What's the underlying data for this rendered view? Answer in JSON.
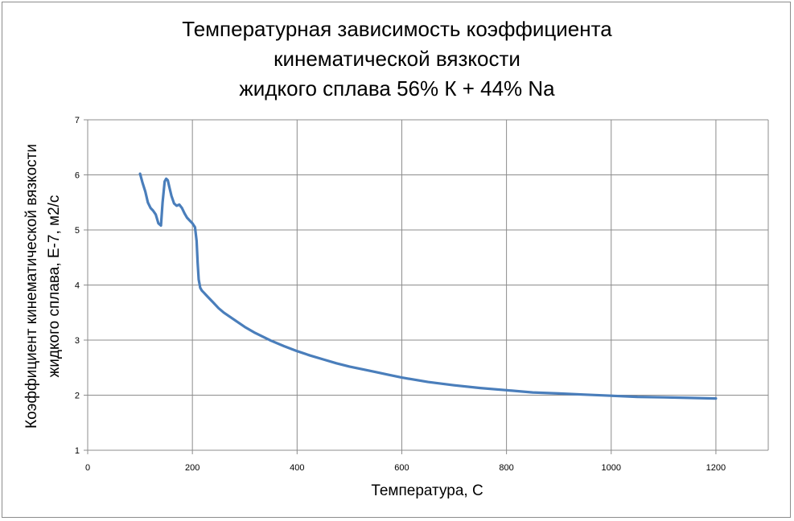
{
  "chart_data": {
    "type": "line",
    "title": [
      "Температурная зависимость коэффициента",
      "кинематической вязкости",
      "жидкого сплава 56% К + 44% Na"
    ],
    "xlabel": "Температура, С",
    "ylabel": [
      "Коэффициент кинематической вязкости",
      "жидкого сплава, Е-7, м2/с"
    ],
    "xlim": [
      0,
      1300
    ],
    "ylim": [
      1,
      7
    ],
    "xticks": [
      "0",
      "200",
      "400",
      "600",
      "800",
      "1000",
      "1200"
    ],
    "yticks": [
      "1",
      "2",
      "3",
      "4",
      "5",
      "6",
      "7"
    ],
    "grid": true,
    "legend": "none",
    "line_color": "#4a7ebb",
    "series": [
      {
        "x": [
          100,
          105,
          110,
          115,
          120,
          125,
          130,
          135,
          140,
          143,
          147,
          150,
          153,
          156,
          160,
          165,
          170,
          175,
          180,
          185,
          190,
          195,
          200,
          205,
          208,
          210,
          212,
          215,
          218,
          220,
          225,
          230,
          240,
          250,
          260,
          280,
          300,
          320,
          350,
          375,
          400,
          425,
          450,
          475,
          500,
          525,
          550,
          575,
          600,
          650,
          700,
          750,
          800,
          850,
          900,
          950,
          1000,
          1050,
          1100,
          1150,
          1200
        ],
        "y": [
          6.02,
          5.85,
          5.7,
          5.5,
          5.4,
          5.35,
          5.28,
          5.12,
          5.08,
          5.5,
          5.88,
          5.93,
          5.9,
          5.78,
          5.62,
          5.48,
          5.44,
          5.46,
          5.4,
          5.3,
          5.22,
          5.17,
          5.12,
          5.05,
          4.8,
          4.4,
          4.1,
          3.95,
          3.9,
          3.88,
          3.83,
          3.78,
          3.68,
          3.58,
          3.5,
          3.37,
          3.24,
          3.13,
          2.99,
          2.89,
          2.8,
          2.72,
          2.65,
          2.58,
          2.52,
          2.47,
          2.42,
          2.37,
          2.32,
          2.24,
          2.18,
          2.13,
          2.09,
          2.05,
          2.03,
          2.01,
          1.99,
          1.97,
          1.96,
          1.95,
          1.94
        ]
      }
    ]
  }
}
